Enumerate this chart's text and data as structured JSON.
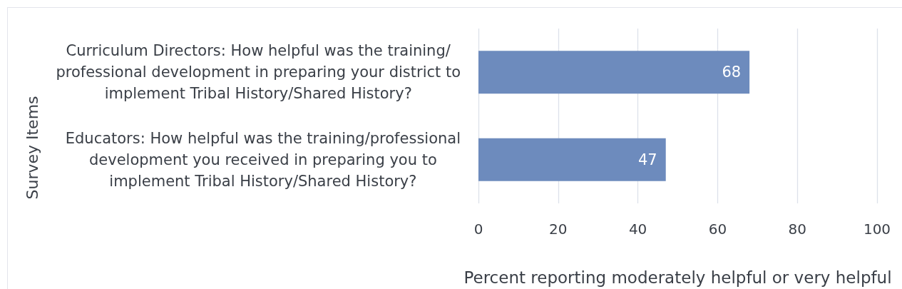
{
  "chart_data": {
    "type": "bar",
    "orientation": "horizontal",
    "categories": [
      "Curriculum Directors: How helpful was the training/\nprofessional development in preparing your district to\nimplement Tribal History/Shared History?",
      "Educators: How helpful was the training/professional\ndevelopment you received in preparing you to\nimplement Tribal History/Shared History?"
    ],
    "values": [
      68,
      47
    ],
    "color": "#6d8bbd",
    "xlim": [
      0,
      100
    ],
    "xticks": [
      0,
      20,
      40,
      60,
      80,
      100
    ],
    "xlabel": "Percent reporting moderately helpful or very helpful",
    "ylabel": "Survey Items",
    "grid": "x",
    "data_labels": true
  }
}
